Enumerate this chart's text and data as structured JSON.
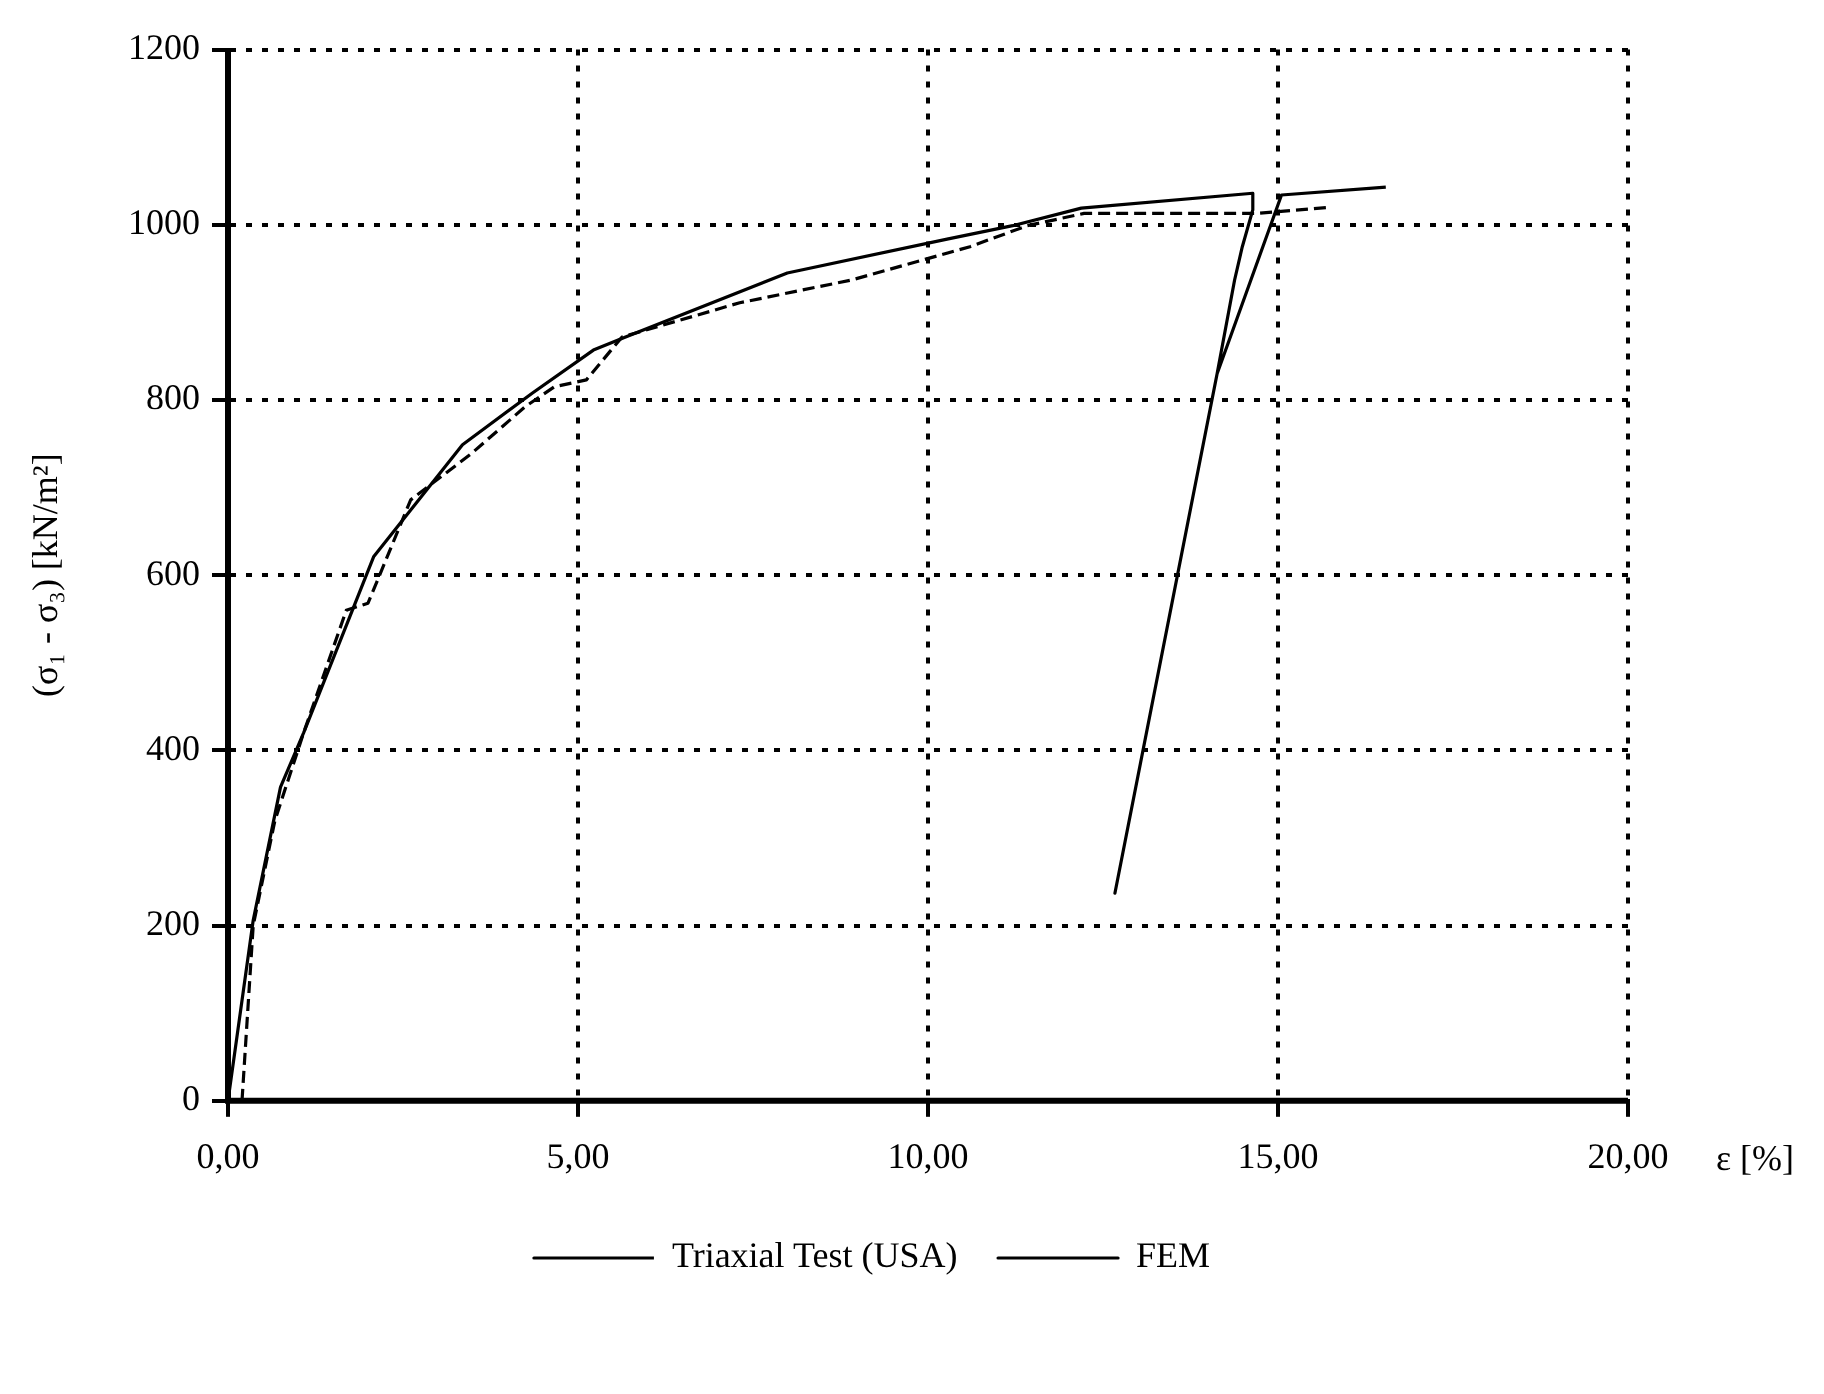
{
  "chart_data": {
    "type": "line",
    "xlabel": "ε [%]",
    "ylabel": "(σ₁ - σ₃) [kN/m²]",
    "xlim": [
      0,
      20
    ],
    "xticks": [
      {
        "value": 0,
        "label": "0,00"
      },
      {
        "value": 5,
        "label": "5,00"
      },
      {
        "value": 10,
        "label": "10,00"
      },
      {
        "value": 15,
        "label": "15,00"
      },
      {
        "value": 20,
        "label": "20,00"
      }
    ],
    "ylim": [
      0,
      1200
    ],
    "yticks": [
      0,
      200,
      400,
      600,
      800,
      1000,
      1200
    ],
    "grid": true,
    "legend": "bottom",
    "marker": "none",
    "series": [
      {
        "name": "Triaxial Test (USA)",
        "color": "#000000",
        "line_style": "dashed",
        "x": [
          0.2,
          0.36,
          0.67,
          1.08,
          1.69,
          2.0,
          2.61,
          3.48,
          4.24,
          4.66,
          5.12,
          5.63,
          7.31,
          8.91,
          10.6,
          11.42,
          12.23,
          14.69,
          15.76
        ],
        "values": [
          0,
          200,
          320,
          420,
          560,
          568,
          686,
          739,
          792,
          815,
          823,
          872,
          911,
          937,
          975,
          999,
          1013,
          1013,
          1020
        ]
      },
      {
        "name": "FEM",
        "color": "#000000",
        "line_style": "solid",
        "x": [
          0,
          0.36,
          0.75,
          1.08,
          2.08,
          3.35,
          4.35,
          5.22,
          5.68,
          7.99,
          10.29,
          11.21,
          12.19,
          14.64,
          14.64,
          14.49,
          14.38,
          14.13,
          12.67,
          14.13,
          15.05,
          16.54
        ],
        "values": [
          0,
          206,
          358,
          420,
          621,
          749,
          808,
          857,
          872,
          945,
          984,
          999,
          1019,
          1036,
          1017,
          975,
          937,
          830,
          237,
          830,
          1034,
          1043
        ]
      }
    ]
  }
}
